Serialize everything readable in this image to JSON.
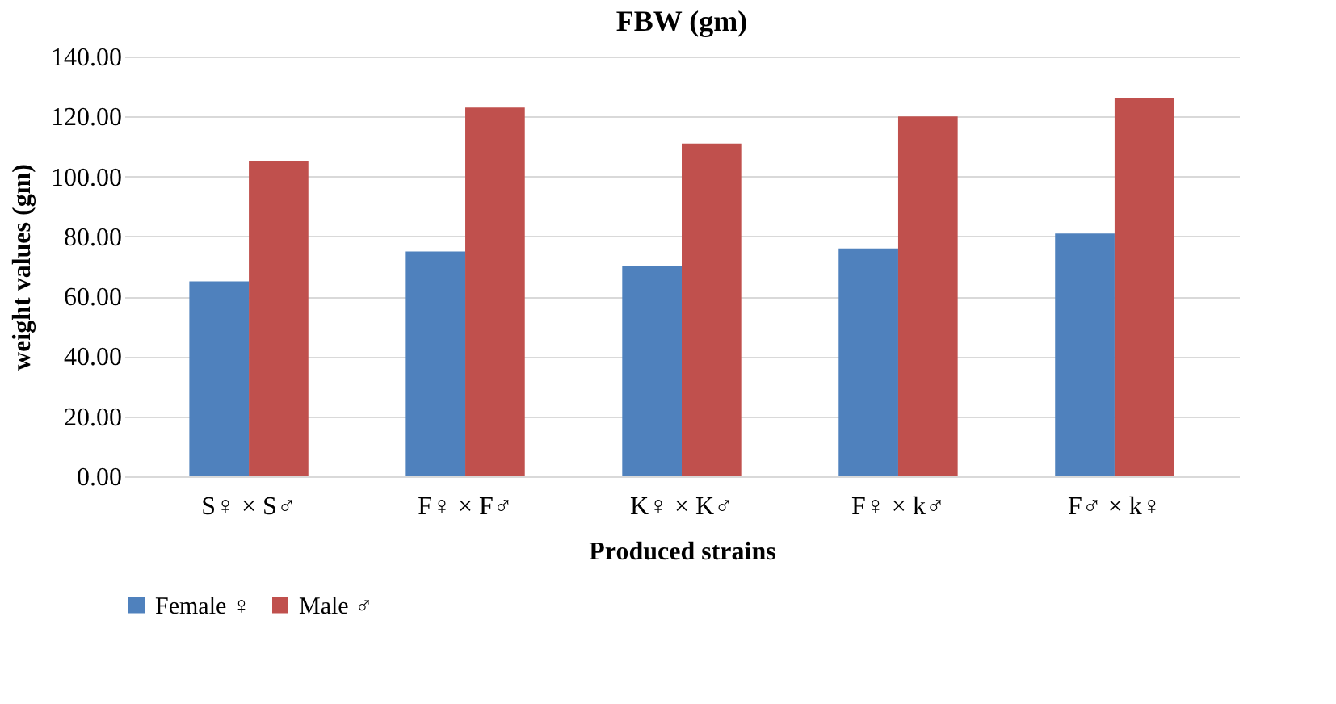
{
  "chart_data": {
    "type": "bar",
    "title": "FBW (gm)",
    "xlabel": "Produced strains",
    "ylabel": "weight values (gm)",
    "categories": [
      "S♀ × S♂",
      "F♀ × F♂",
      "K♀ × K♂",
      "F♀ × k♂",
      "F♂ × k♀"
    ],
    "series": [
      {
        "name": "Female ♀",
        "color": "#4f81bd",
        "values": [
          65,
          75,
          70,
          76,
          81
        ]
      },
      {
        "name": "Male ♂",
        "color": "#c0504d",
        "values": [
          105,
          123,
          111,
          120,
          126
        ]
      }
    ],
    "ylim": [
      0,
      140
    ],
    "yticks": [
      {
        "value": 0,
        "label": "0.00"
      },
      {
        "value": 20,
        "label": "20.00"
      },
      {
        "value": 40,
        "label": "40.00"
      },
      {
        "value": 60,
        "label": "60.00"
      },
      {
        "value": 80,
        "label": "80.00"
      },
      {
        "value": 100,
        "label": "100.00"
      },
      {
        "value": 120,
        "label": "120.00"
      },
      {
        "value": 140,
        "label": "140.00"
      }
    ],
    "grid": "y",
    "legend": "bottom"
  }
}
